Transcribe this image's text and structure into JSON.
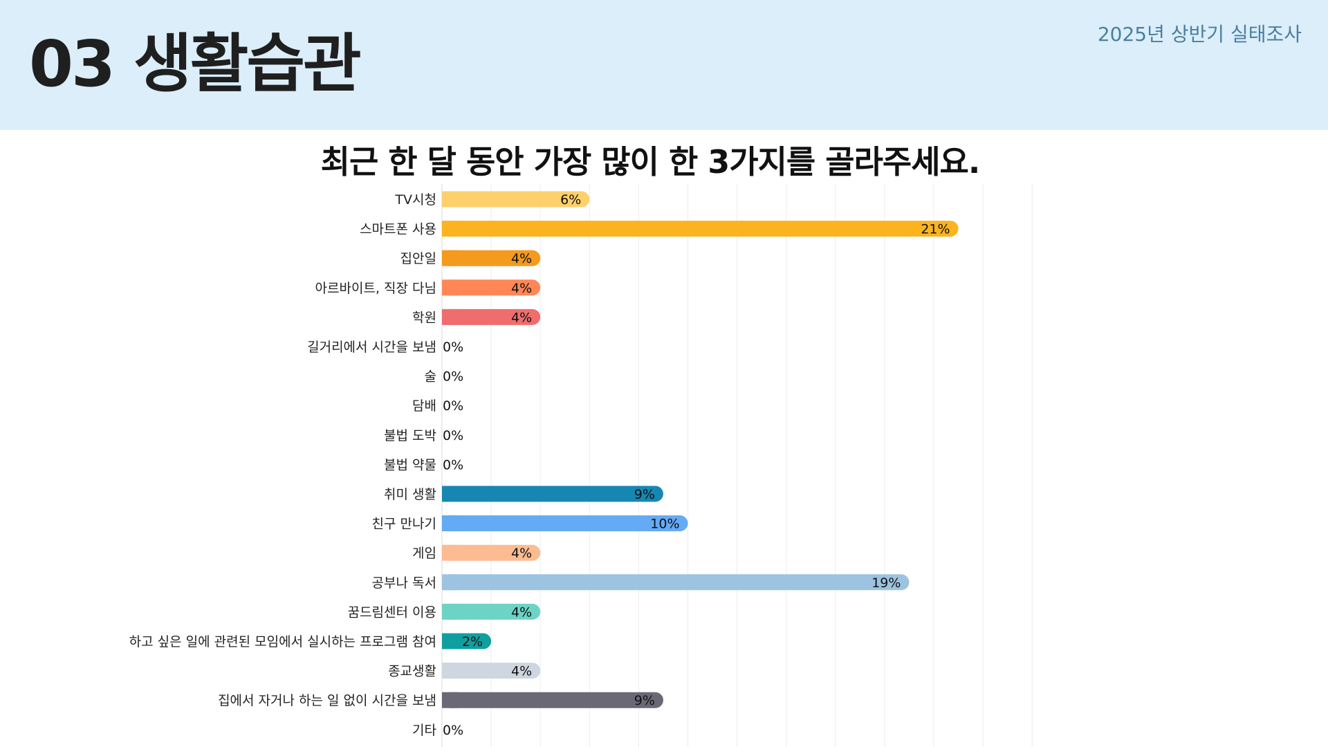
{
  "header": {
    "title": "03 생활습관",
    "survey_label": "2025년 상반기 실태조사",
    "background": "#dbeef9"
  },
  "chart_data": {
    "type": "bar",
    "orientation": "horizontal",
    "title": "최근 한 달 동안 가장 많이 한 3가지를 골라주세요.",
    "xlabel": "",
    "ylabel": "",
    "xlim": [
      0,
      30
    ],
    "grid": true,
    "legend": "none",
    "value_format": "percent",
    "categories": [
      "TV시청",
      "스마트폰 사용",
      "집안일",
      "아르바이트, 직장 다님",
      "학원",
      "길거리에서 시간을 보냄",
      "술",
      "담배",
      "불법 도박",
      "불법 약물",
      "취미 생활",
      "친구 만나기",
      "게임",
      "공부나 독서",
      "꿈드림센터 이용",
      "하고 싶은 일에 관련된 모임에서 실시하는 프로그램 참여",
      "종교생활",
      "집에서 자거나 하는 일 없이 시간을 보냄",
      "기타"
    ],
    "values": [
      6,
      21,
      4,
      4,
      4,
      0,
      0,
      0,
      0,
      0,
      9,
      10,
      4,
      19,
      4,
      2,
      4,
      9,
      0
    ],
    "colors": [
      "#fdd06b",
      "#fbb31f",
      "#f49a1c",
      "#ff8756",
      "#f06d6d",
      "#cccccc",
      "#cccccc",
      "#cccccc",
      "#cccccc",
      "#cccccc",
      "#1687b3",
      "#64aaf5",
      "#fdbb91",
      "#9cc3e0",
      "#6dd3c5",
      "#109f9f",
      "#ced6e0",
      "#6a6875",
      "#cccccc"
    ]
  }
}
